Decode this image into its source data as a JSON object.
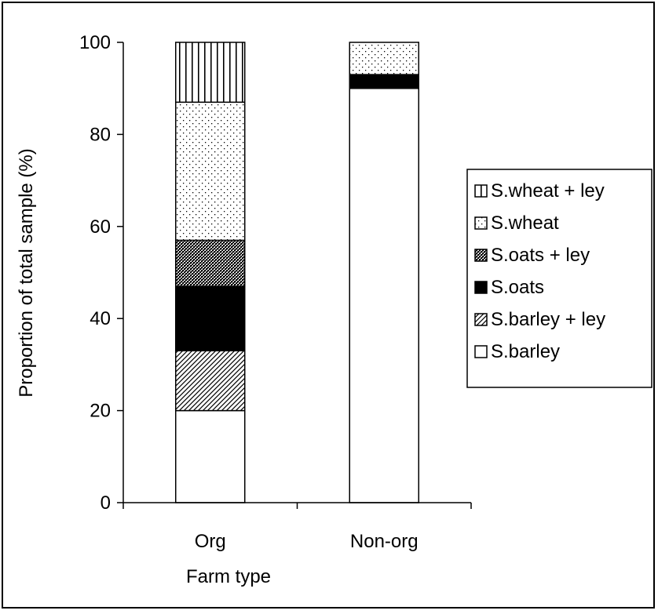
{
  "chart_data": {
    "type": "bar",
    "stacked": true,
    "title": "",
    "xlabel": "Farm type",
    "ylabel": "Proportion of total sample (%)",
    "ylim": [
      0,
      100
    ],
    "yticks": [
      0,
      20,
      40,
      60,
      80,
      100
    ],
    "grid": false,
    "legend_position": "right",
    "categories": [
      "Org",
      "Non-org"
    ],
    "series": [
      {
        "name": "S.barley",
        "pattern": "solid-white",
        "values": [
          20,
          90
        ]
      },
      {
        "name": "S.barley + ley",
        "pattern": "diagonal-hatch",
        "values": [
          13,
          0
        ]
      },
      {
        "name": "S.oats",
        "pattern": "solid-black",
        "values": [
          14,
          3
        ]
      },
      {
        "name": "S.oats + ley",
        "pattern": "dense-checker",
        "values": [
          10,
          0
        ]
      },
      {
        "name": "S.wheat",
        "pattern": "sparse-dots",
        "values": [
          30,
          7
        ]
      },
      {
        "name": "S.wheat + ley",
        "pattern": "vertical-stripes",
        "values": [
          13,
          0
        ]
      }
    ],
    "legend_order": [
      "S.wheat + ley",
      "S.wheat",
      "S.oats + ley",
      "S.oats",
      "S.barley + ley",
      "S.barley"
    ]
  }
}
